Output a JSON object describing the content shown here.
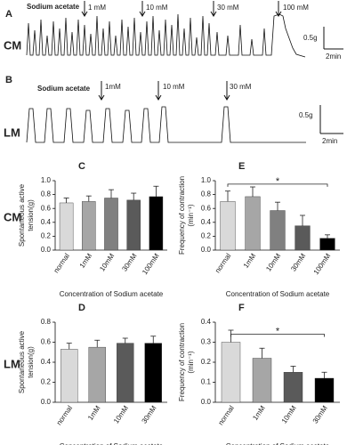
{
  "traces": [
    {
      "label": "A",
      "muscle": "CM",
      "treatment": "Sodium acetate",
      "doses": [
        "1 mM",
        "10 mM",
        "30 mM",
        "100 mM"
      ],
      "scale_force": "0.5g",
      "scale_time": "2min"
    },
    {
      "label": "B",
      "muscle": "LM",
      "treatment": "Sodium acetate",
      "doses": [
        "1mM",
        "10 mM",
        "30 mM"
      ],
      "scale_force": "0.5g",
      "scale_time": "2min"
    }
  ],
  "row_labels": [
    "CM",
    "LM"
  ],
  "chart_data": [
    {
      "type": "bar",
      "panel": "C",
      "ylabel": [
        "Spontaneous active",
        "tension(g)"
      ],
      "xlabel": "Concentration of  Sodium acetate",
      "categories": [
        "normal",
        "1mM",
        "10mM",
        "30mM",
        "100mM"
      ],
      "values": [
        0.68,
        0.7,
        0.75,
        0.72,
        0.77
      ],
      "errors": [
        0.07,
        0.08,
        0.12,
        0.1,
        0.15
      ],
      "colors": [
        "#d9d9d9",
        "#a6a6a6",
        "#808080",
        "#5a5a5a",
        "#000000"
      ],
      "ylim": [
        0,
        1
      ],
      "yticks": [
        {
          "value": 0,
          "label": "0.0"
        },
        0.2,
        0.4,
        0.6,
        0.8,
        {
          "value": 1,
          "label": "1.0"
        }
      ]
    },
    {
      "type": "bar",
      "panel": "E",
      "ylabel": [
        "Frequency  of  contraction",
        "(min⁻¹)"
      ],
      "xlabel": "Concentration of  Sodium acetate",
      "categories": [
        "normal",
        "1mM",
        "10mM",
        "30mM",
        "100mM"
      ],
      "values": [
        0.7,
        0.77,
        0.57,
        0.35,
        0.17
      ],
      "errors": [
        0.15,
        0.14,
        0.12,
        0.15,
        0.05
      ],
      "colors": [
        "#d9d9d9",
        "#a6a6a6",
        "#808080",
        "#5a5a5a",
        "#000000"
      ],
      "ylim": [
        0,
        1
      ],
      "yticks": [
        {
          "value": 0,
          "label": "0.0"
        },
        0.2,
        0.4,
        0.6,
        0.8,
        {
          "value": 1,
          "label": "1.0"
        }
      ],
      "significance": {
        "label": "*",
        "y": 0.95
      }
    },
    {
      "type": "bar",
      "panel": "D",
      "ylabel": [
        "Spontaneous active",
        "tension(g)"
      ],
      "xlabel": "Concentration of  Sodium acetate",
      "categories": [
        "normal",
        "1mM",
        "10mM",
        "30mM"
      ],
      "values": [
        0.53,
        0.55,
        0.59,
        0.59
      ],
      "errors": [
        0.06,
        0.07,
        0.05,
        0.07
      ],
      "colors": [
        "#d9d9d9",
        "#a6a6a6",
        "#5a5a5a",
        "#000000"
      ],
      "ylim": [
        0,
        0.8
      ],
      "yticks": [
        {
          "value": 0,
          "label": "0.0"
        },
        0.2,
        0.4,
        0.6,
        0.8
      ]
    },
    {
      "type": "bar",
      "panel": "F",
      "ylabel": [
        "Frequency  of  contraction",
        "(min⁻¹)"
      ],
      "xlabel": "Concentration of  Sodium acetate",
      "categories": [
        "normal",
        "1mM",
        "10mM",
        "30mM"
      ],
      "values": [
        0.3,
        0.22,
        0.15,
        0.12
      ],
      "errors": [
        0.06,
        0.05,
        0.03,
        0.03
      ],
      "colors": [
        "#d9d9d9",
        "#a6a6a6",
        "#5a5a5a",
        "#000000"
      ],
      "ylim": [
        0,
        0.4
      ],
      "yticks": [
        {
          "value": 0,
          "label": "0.0"
        },
        0.1,
        0.2,
        0.3,
        0.4
      ],
      "significance": {
        "label": "*",
        "y": 0.34
      }
    }
  ]
}
